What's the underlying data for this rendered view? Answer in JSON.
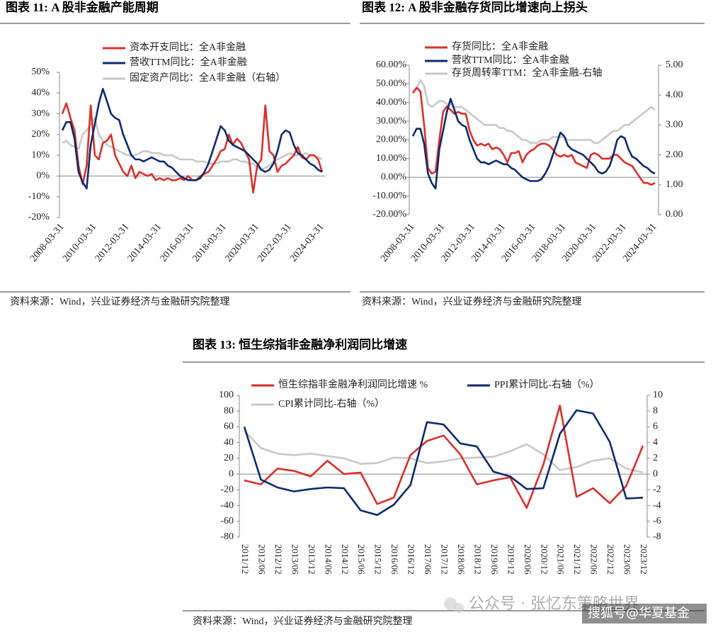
{
  "chart_data": [
    {
      "type": "line",
      "title": "图表 11: A 股非金融产能周期",
      "source": "资料来源：Wind，兴业证券经济与金融研究院整理",
      "categories": [
        "2008-03-31",
        null,
        null,
        null,
        null,
        null,
        null,
        null,
        "2010-03-31",
        null,
        null,
        null,
        null,
        null,
        null,
        null,
        "2012-03-31",
        null,
        null,
        null,
        null,
        null,
        null,
        null,
        "2014-03-31",
        null,
        null,
        null,
        null,
        null,
        null,
        null,
        "2016-03-31",
        null,
        null,
        null,
        null,
        null,
        null,
        null,
        "2018-03-31",
        null,
        null,
        null,
        null,
        null,
        null,
        null,
        "2020-03-31",
        null,
        null,
        null,
        null,
        null,
        null,
        null,
        "2022-03-31",
        null,
        null,
        null,
        null,
        null,
        null,
        null,
        "2024-03-31"
      ],
      "series": [
        {
          "name": "资本开支同比：全A非金融",
          "color": "#d9302b",
          "values": [
            30,
            35,
            28,
            22,
            5,
            -4,
            5,
            34,
            10,
            8,
            16,
            17,
            20,
            10,
            6,
            2,
            0,
            5,
            -1,
            2,
            1,
            0,
            1,
            -2,
            -1,
            -2,
            -1,
            -2,
            -2,
            -1,
            -2,
            0,
            -2,
            -2,
            0,
            1,
            2,
            5,
            8,
            12,
            13,
            20,
            15,
            18,
            16,
            12,
            8,
            -8,
            5,
            8,
            34,
            12,
            10,
            2,
            5,
            6,
            8,
            10,
            14,
            9,
            8,
            10,
            10,
            8,
            2
          ]
        },
        {
          "name": "营收TTM同比：全A非金融",
          "color": "#0d2a6b",
          "values": [
            22,
            26,
            26,
            18,
            2,
            -3,
            -6,
            15,
            25,
            35,
            42,
            36,
            30,
            28,
            27,
            20,
            15,
            10,
            8,
            8,
            7,
            8,
            9,
            8,
            7,
            7,
            5,
            4,
            2,
            0,
            -1,
            -2,
            -2,
            -2,
            -1,
            2,
            6,
            12,
            18,
            24,
            22,
            17,
            15,
            14,
            13,
            12,
            10,
            8,
            6,
            3,
            2,
            3,
            6,
            12,
            20,
            22,
            21,
            15,
            11,
            10,
            8,
            6,
            5,
            3,
            2
          ]
        },
        {
          "name": "固定资产同比：全A非金融（右轴）",
          "color": "#c8c8c8",
          "values": [
            16,
            17,
            15,
            14,
            13,
            20,
            22,
            25,
            28,
            20,
            17,
            15,
            14,
            13,
            12,
            11,
            10,
            10,
            10,
            11,
            12,
            12,
            11,
            11,
            11,
            10,
            10,
            10,
            9,
            8,
            8,
            8,
            8,
            7,
            7,
            7,
            6,
            6,
            6,
            7,
            7,
            7,
            8,
            8,
            7,
            7,
            6,
            6,
            4,
            3,
            4,
            5,
            7,
            8,
            9,
            10,
            11,
            10,
            10,
            10,
            11,
            10,
            10,
            9,
            8
          ]
        }
      ],
      "ylim": [
        -20,
        50
      ],
      "yticks": [
        {
          "value": -20,
          "label": "-20%"
        },
        {
          "value": -10,
          "label": "-10%"
        },
        {
          "value": 0,
          "label": "0%"
        },
        {
          "value": 10,
          "label": "10%"
        },
        {
          "value": 20,
          "label": "20%"
        },
        {
          "value": 30,
          "label": "30%"
        },
        {
          "value": 40,
          "label": "40%"
        },
        {
          "value": 50,
          "label": "50%"
        }
      ]
    },
    {
      "type": "line",
      "title": "图表 12: A 股非金融存货同比增速向上拐头",
      "source": "资料来源：Wind，兴业证券经济与金融研究院整理",
      "categories": [
        "2008-03-31",
        null,
        null,
        null,
        null,
        null,
        null,
        null,
        "2010-03-31",
        null,
        null,
        null,
        null,
        null,
        null,
        null,
        "2012-03-31",
        null,
        null,
        null,
        null,
        null,
        null,
        null,
        "2014-03-31",
        null,
        null,
        null,
        null,
        null,
        null,
        null,
        "2016-03-31",
        null,
        null,
        null,
        null,
        null,
        null,
        null,
        "2018-03-31",
        null,
        null,
        null,
        null,
        null,
        null,
        null,
        "2020-03-31",
        null,
        null,
        null,
        null,
        null,
        null,
        null,
        "2022-03-31",
        null,
        null,
        null,
        null,
        null,
        null,
        null,
        "2024-03-31"
      ],
      "series": [
        {
          "name": "存货同比：全A非金融",
          "color": "#d9302b",
          "values": [
            45,
            48,
            46,
            28,
            5,
            2,
            3,
            20,
            35,
            38,
            36,
            34,
            35,
            34,
            34,
            25,
            20,
            17,
            18,
            17,
            18,
            15,
            16,
            15,
            12,
            8,
            13,
            13,
            14,
            8,
            12,
            14,
            15,
            17,
            18,
            18,
            17,
            15,
            12,
            11,
            12,
            11,
            12,
            8,
            7,
            6,
            5,
            12,
            13,
            12,
            10,
            10,
            10,
            12,
            12,
            10,
            8,
            7,
            6,
            3,
            0,
            -3,
            -3,
            -4,
            -3
          ]
        },
        {
          "name": "营收TTM同比：全A非金融",
          "color": "#0d2a6b",
          "values": [
            22,
            26,
            26,
            18,
            2,
            -3,
            -6,
            15,
            25,
            35,
            42,
            36,
            30,
            28,
            27,
            20,
            15,
            10,
            8,
            8,
            7,
            8,
            9,
            8,
            7,
            7,
            5,
            4,
            2,
            0,
            -1,
            -2,
            -2,
            -2,
            -1,
            2,
            6,
            12,
            18,
            24,
            22,
            17,
            15,
            14,
            13,
            12,
            10,
            8,
            6,
            3,
            2,
            3,
            6,
            12,
            20,
            22,
            21,
            15,
            11,
            10,
            8,
            6,
            5,
            3,
            2
          ]
        },
        {
          "name": "存货周转率TTM：全A非金融-右轴",
          "color": "#c8c8c8",
          "axis": "y2",
          "values": [
            4.1,
            4.2,
            4.5,
            4.3,
            3.7,
            3.6,
            3.7,
            3.8,
            3.8,
            3.7,
            3.7,
            3.6,
            3.6,
            3.6,
            3.5,
            3.4,
            3.3,
            3.2,
            3.1,
            3.0,
            3.0,
            3.0,
            3.0,
            2.9,
            2.9,
            2.8,
            2.8,
            2.7,
            2.6,
            2.5,
            2.5,
            2.4,
            2.4,
            2.4,
            2.5,
            2.5,
            2.5,
            2.6,
            2.6,
            2.6,
            2.6,
            2.5,
            2.5,
            2.5,
            2.5,
            2.5,
            2.5,
            2.5,
            2.4,
            2.4,
            2.5,
            2.6,
            2.7,
            2.8,
            2.8,
            2.9,
            3.0,
            3.0,
            3.1,
            3.2,
            3.3,
            3.4,
            3.5,
            3.6,
            3.5
          ]
        }
      ],
      "ylim": [
        -20,
        60
      ],
      "yticks": [
        {
          "value": -20,
          "label": "-20.00%"
        },
        {
          "value": -10,
          "label": "-10.00%"
        },
        {
          "value": 0,
          "label": "0.00%"
        },
        {
          "value": 10,
          "label": "10.00%"
        },
        {
          "value": 20,
          "label": "20.00%"
        },
        {
          "value": 30,
          "label": "30.00%"
        },
        {
          "value": 40,
          "label": "40.00%"
        },
        {
          "value": 50,
          "label": "50.00%"
        },
        {
          "value": 60,
          "label": "60.00%"
        }
      ],
      "y2lim": [
        0,
        5
      ],
      "y2ticks": [
        {
          "value": 0,
          "label": "0.00"
        },
        {
          "value": 1,
          "label": "1.00"
        },
        {
          "value": 2,
          "label": "2.00"
        },
        {
          "value": 3,
          "label": "3.00"
        },
        {
          "value": 4,
          "label": "4.00"
        },
        {
          "value": 5,
          "label": "5.00"
        }
      ]
    },
    {
      "type": "line",
      "title": "图表 13: 恒生综指非金融净利润同比增速",
      "source": "资料来源：Wind，兴业证券经济与金融研究院整理",
      "categories": [
        "2011/12",
        "2012/06",
        "2012/12",
        "2013/06",
        "2013/12",
        "2014/06",
        "2014/12",
        "2015/06",
        "2015/12",
        "2016/06",
        "2016/12",
        "2017/06",
        "2017/12",
        "2018/06",
        "2018/12",
        "2019/06",
        "2019/12",
        "2020/06",
        "2020/12",
        "2021/06",
        "2021/12",
        "2022/06",
        "2022/12",
        "2023/06",
        "2023/12"
      ],
      "series": [
        {
          "name": "恒生综指非金融净利润同比增速 %",
          "color": "#d9302b",
          "values": [
            -8,
            -13,
            7,
            4,
            -3,
            17,
            0,
            2,
            -38,
            -30,
            24,
            42,
            49,
            25,
            -13,
            -8,
            -4,
            -43,
            12,
            87,
            -29,
            -18,
            -37,
            -15,
            36
          ]
        },
        {
          "name": "PPI累计同比-右轴（%）",
          "color": "#0d2a6b",
          "axis": "y2",
          "values": [
            6,
            -0.7,
            -1.7,
            -2.2,
            -1.9,
            -1.7,
            -1.8,
            -4.6,
            -5.2,
            -3.9,
            -1.4,
            6.6,
            6.3,
            3.9,
            3.5,
            0.3,
            -0.3,
            -1.9,
            -1.8,
            5.1,
            8.1,
            7.7,
            4.1,
            -3.1,
            -3.0
          ]
        },
        {
          "name": "CPI累计同比-右轴（%）",
          "color": "#c8c8c8",
          "axis": "y2",
          "values": [
            5.5,
            3.3,
            2.6,
            2.4,
            2.6,
            2.3,
            2.0,
            1.3,
            1.4,
            2.1,
            2.0,
            1.4,
            1.6,
            2.0,
            2.1,
            2.2,
            2.9,
            3.8,
            2.5,
            0.5,
            0.9,
            1.7,
            2.0,
            0.7,
            0.2
          ]
        }
      ],
      "ylim": [
        -80,
        100
      ],
      "yticks": [
        -80,
        -60,
        -40,
        -20,
        0,
        20,
        40,
        60,
        80,
        100
      ],
      "y2lim": [
        -8,
        10
      ],
      "y2ticks": [
        -8,
        -6,
        -4,
        -2,
        0,
        2,
        4,
        6,
        8,
        10
      ]
    }
  ],
  "watermarks": [
    "公众号 · 张忆东策略世界",
    "搜狐号@华夏基金"
  ]
}
